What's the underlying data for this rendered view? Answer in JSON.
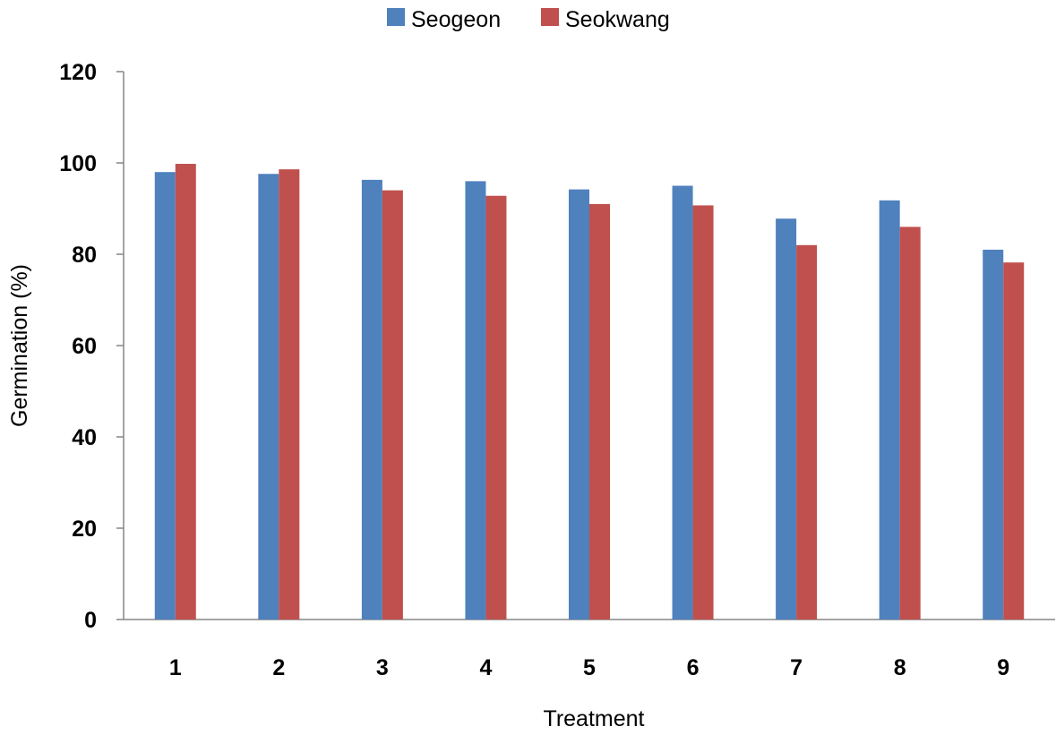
{
  "chart_data": {
    "type": "bar",
    "title": "",
    "xlabel": "Treatment",
    "ylabel": "Germination (%)",
    "categories": [
      "1",
      "2",
      "3",
      "4",
      "5",
      "6",
      "7",
      "8",
      "9"
    ],
    "series": [
      {
        "name": "Seogeon",
        "color": "#4F81BD",
        "values": [
          98,
          97.6,
          96.3,
          96,
          94.2,
          95,
          87.8,
          91.8,
          81
        ]
      },
      {
        "name": "Seokwang",
        "color": "#C0504D",
        "values": [
          99.8,
          98.6,
          94,
          92.8,
          91,
          90.7,
          82,
          86,
          78.2
        ]
      }
    ],
    "ylim": [
      0,
      120
    ],
    "yticks": [
      0,
      20,
      40,
      60,
      80,
      100,
      120
    ],
    "grid": false,
    "legend_position": "top-center"
  }
}
